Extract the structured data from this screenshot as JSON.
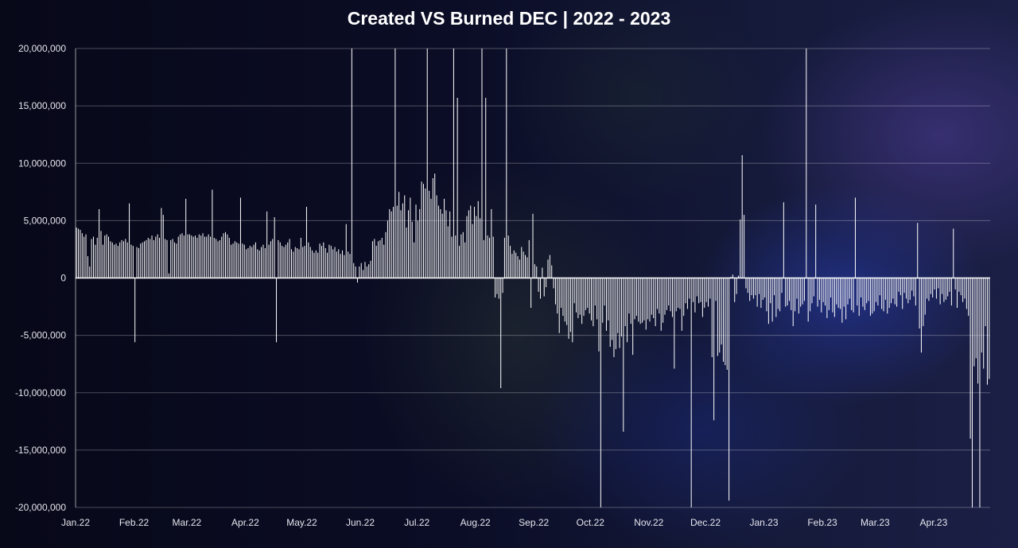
{
  "chart_data": {
    "type": "bar",
    "title": "Created VS Burned DEC | 2022 - 2023",
    "xlabel": "",
    "ylabel": "",
    "ylim": [
      -20000000,
      20000000
    ],
    "y_ticks": [
      20000000,
      15000000,
      10000000,
      5000000,
      0,
      -5000000,
      -10000000,
      -15000000,
      -20000000
    ],
    "y_tick_labels": [
      "20,000,000",
      "15,000,000",
      "10,000,000",
      "5,000,000",
      "0",
      "-5,000,000",
      "-10,000,000",
      "-15,000,000",
      "-20,000,000"
    ],
    "x_tick_labels": [
      "Jan.22",
      "Feb.22",
      "Mar.22",
      "Apr.22",
      "May.22",
      "Jun.22",
      "Jul.22",
      "Aug.22",
      "Sep.22",
      "Oct.22",
      "Nov.22",
      "Dec.22",
      "Jan.23",
      "Feb.23",
      "Mar.23",
      "Apr.23"
    ],
    "grid": true,
    "legend": "none",
    "bar_color": "#ffffff",
    "series": [
      {
        "start_date": "2022-01-01",
        "frequency": "daily",
        "monthly_values": [
          [
            4400000,
            4300000,
            4200000,
            3900000,
            3600000,
            3800000,
            1900000,
            1000000,
            3400000,
            3600000,
            2900000,
            3500000,
            6000000,
            4100000,
            2900000,
            3700000,
            3800000,
            3600000,
            3200000,
            3100000,
            2900000,
            3000000,
            2800000,
            3100000,
            3300000,
            3200000,
            3400000,
            3100000,
            6500000,
            2900000,
            2800000
          ],
          [
            -5600000,
            2700000,
            2600000,
            3000000,
            3100000,
            3200000,
            3300000,
            3500000,
            3400000,
            3700000,
            3300000,
            3600000,
            3800000,
            3500000,
            6100000,
            5500000,
            3400000,
            3300000,
            400000,
            3300000,
            3400000,
            3100000,
            3000000,
            3600000,
            3800000,
            3900000,
            3700000,
            6900000
          ],
          [
            3800000,
            3800000,
            3700000,
            3600000,
            3700000,
            3500000,
            3800000,
            3700000,
            3900000,
            3600000,
            3600000,
            3800000,
            3600000,
            7700000,
            3500000,
            3400000,
            3200000,
            3300000,
            3600000,
            3900000,
            4000000,
            3800000,
            3500000,
            2900000,
            3000000,
            3200000,
            3100000,
            3000000,
            7000000,
            3000000,
            2900000
          ],
          [
            2500000,
            2600000,
            2800000,
            2700000,
            2900000,
            3100000,
            2500000,
            2400000,
            2700000,
            2900000,
            2600000,
            5800000,
            2900000,
            3200000,
            3400000,
            5300000,
            -5600000,
            3300000,
            3100000,
            2800000,
            2700000,
            2900000,
            3100000,
            3400000,
            2500000,
            2300000,
            2700000,
            2600000,
            2500000,
            3500000
          ],
          [
            2700000,
            2800000,
            6200000,
            3100000,
            2700000,
            2400000,
            2200000,
            2400000,
            2200000,
            3000000,
            2800000,
            3100000,
            2600000,
            2200000,
            2900000,
            2800000,
            2500000,
            2700000,
            2300000,
            2500000,
            2100000,
            2400000,
            2000000,
            4700000,
            2300000,
            2100000,
            3700000,
            1300000,
            1000000,
            -400000,
            1000000
          ],
          [
            1300000,
            700000,
            1400000,
            1000000,
            1200000,
            1500000,
            3200000,
            3400000,
            2800000,
            3200000,
            3300000,
            3500000,
            2900000,
            4000000,
            5000000,
            6000000,
            5800000,
            6200000,
            5600000,
            6300000,
            7500000,
            5900000,
            6500000,
            7200000,
            4400000,
            5900000,
            7000000,
            4900000,
            3100000,
            6400000
          ],
          [
            5000000,
            6000000,
            8400000,
            8200000,
            7800000,
            8000000,
            7600000,
            6900000,
            8700000,
            9100000,
            7200000,
            6300000,
            6000000,
            5600000,
            6900000,
            5900000,
            4500000,
            5800000,
            3600000,
            4200000,
            3700000,
            5500000,
            2800000,
            3800000,
            4000000,
            3100000,
            5400000,
            5900000,
            6300000,
            4700000,
            6200000
          ],
          [
            5400000,
            6700000,
            5200000,
            4100000,
            3300000,
            2600000,
            3700000,
            3500000,
            6000000,
            3600000,
            -1700000,
            -1400000,
            -1800000,
            -9600000,
            -1300000,
            3500000,
            -2400000,
            3700000,
            2800000,
            2100000,
            2400000,
            2200000,
            1900000,
            1600000,
            2700000,
            2300000,
            2000000,
            1800000,
            3300000,
            -2600000,
            5600000
          ],
          [
            1200000,
            1000000,
            -1200000,
            -1800000,
            900000,
            -1600000,
            -800000,
            1600000,
            2000000,
            1100000,
            -900000,
            -2300000,
            -3100000,
            -4800000,
            -2600000,
            -3300000,
            -3800000,
            -4100000,
            -5300000,
            -4700000,
            -5600000,
            -2200000,
            -3000000,
            -3500000,
            -3200000,
            -4000000,
            -3300000,
            -2800000,
            -2600000,
            -3100000
          ],
          [
            -3700000,
            -4200000,
            -2400000,
            -3600000,
            -6400000,
            -4500000,
            -3900000,
            -2400000,
            -4600000,
            -3700000,
            -6000000,
            -5400000,
            -6900000,
            -6200000,
            -4800000,
            -6100000,
            -5100000,
            -13400000,
            -4200000,
            -5600000,
            -3100000,
            -4000000,
            -6700000,
            -3600000,
            -3300000,
            -3800000,
            -4000000,
            -3900000,
            -3700000,
            -4500000,
            -3600000
          ],
          [
            -3800000,
            -3200000,
            -3500000,
            -4200000,
            -2700000,
            -3100000,
            -4600000,
            -3900000,
            -3200000,
            -2800000,
            -2400000,
            -2900000,
            -3400000,
            -7900000,
            -2900000,
            -2600000,
            -2700000,
            -4600000,
            -3300000,
            -2200000,
            -2700000,
            -1800000,
            -2400000,
            -2100000,
            -3000000,
            -1600000,
            -2200000,
            -2100000,
            -3400000,
            -2600000
          ],
          [
            -2100000,
            -2500000,
            -1800000,
            -6900000,
            -12400000,
            -2000000,
            -6800000,
            -6500000,
            -5800000,
            -7300000,
            -7600000,
            -8000000,
            -19400000,
            100000,
            300000,
            -2100000,
            -1400000,
            200000,
            5100000,
            10700000,
            5500000,
            -900000,
            -1300000,
            -2000000,
            -1500000,
            -1800000,
            -1500000,
            -2500000,
            -1400000,
            -2600000,
            -1900000
          ],
          [
            -1700000,
            -2900000,
            -4000000,
            -2200000,
            -3800000,
            -1500000,
            -3400000,
            -2700000,
            -2900000,
            -1300000,
            6600000,
            -2500000,
            -2400000,
            -2000000,
            -2800000,
            -4200000,
            -2900000,
            -1800000,
            -3100000,
            -2500000,
            -2300000,
            -2000000,
            -1500000,
            -3800000,
            -2900000,
            -2200000,
            -1600000,
            6400000,
            -2500000,
            -1900000,
            -3000000
          ],
          [
            -2100000,
            -2400000,
            -3500000,
            -2800000,
            -1700000,
            -3000000,
            -3400000,
            -2300000,
            -2600000,
            -2700000,
            -3900000,
            -2500000,
            -3600000,
            -2300000,
            -1800000,
            -2800000,
            -3000000,
            7000000,
            -2400000,
            -3300000,
            -1700000,
            -2500000,
            -2800000,
            -2200000,
            -2000000,
            -3300000,
            -3100000,
            -2900000
          ],
          [
            -2100000,
            -2400000,
            -1500000,
            -2700000,
            -2900000,
            -1900000,
            -3100000,
            -2600000,
            -2200000,
            -1800000,
            -2300000,
            -2500000,
            -1200000,
            -1500000,
            -2700000,
            -1300000,
            -1800000,
            -2200000,
            -1900000,
            -1100000,
            -1600000,
            -2400000,
            4800000,
            -4400000,
            -6500000,
            -4200000,
            -3200000,
            -1800000,
            -2000000,
            -1400000,
            -1700000
          ],
          [
            -1000000,
            -1800000,
            -900000,
            -2300000,
            -1400000,
            -2100000,
            -1900000,
            -1600000,
            -1200000,
            -2400000,
            4300000,
            -1000000,
            -2600000,
            -1200000,
            -1500000,
            -2100000,
            -1800000,
            -2700000,
            -3300000,
            -14000000,
            -20000000,
            -7700000,
            -7000000,
            -9200000,
            -20000000,
            -6500000,
            -7900000,
            -4200000,
            -9300000,
            -8800000
          ]
        ],
        "spikes": [
          {
            "date": "2022-05-27",
            "value": 20000000
          },
          {
            "date": "2022-06-19",
            "value": 20000000
          },
          {
            "date": "2022-07-06",
            "value": 20000000
          },
          {
            "date": "2022-07-20",
            "value": 20000000
          },
          {
            "date": "2022-07-22",
            "value": 15700000
          },
          {
            "date": "2022-08-04",
            "value": 20000000
          },
          {
            "date": "2022-08-06",
            "value": 15700000
          },
          {
            "date": "2022-08-17",
            "value": 20000000
          },
          {
            "date": "2022-10-06",
            "value": -20000000
          },
          {
            "date": "2022-11-23",
            "value": -20000000
          },
          {
            "date": "2023-01-23",
            "value": 20000000
          }
        ]
      }
    ]
  }
}
